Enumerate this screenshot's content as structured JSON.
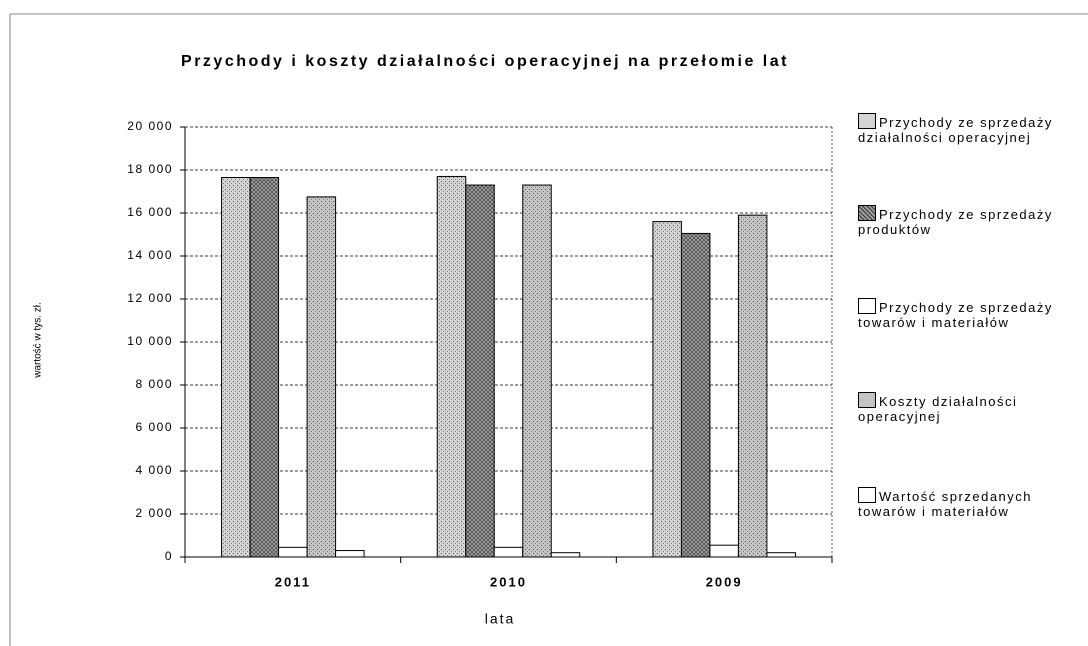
{
  "chart_data": {
    "type": "bar",
    "title": "Przychody i koszty działalności operacyjnej na przełomie lat",
    "x_label": "lata",
    "y_label": "wartość w tys. zł.",
    "categories": [
      "2011",
      "2010",
      "2009"
    ],
    "series": [
      {
        "name": "Przychody ze sprzedaży działalności operacyjnej",
        "color": "#d4d4d4",
        "values": [
          17650,
          17700,
          15600
        ]
      },
      {
        "name": "Przychody ze sprzedaży produktów",
        "color": "#a0a0a0",
        "values": [
          17650,
          17300,
          15050
        ]
      },
      {
        "name": "Przychody ze sprzedaży towarów i materiałów",
        "color": "#ffffff",
        "values": [
          450,
          450,
          550
        ]
      },
      {
        "name": "Koszty działalności operacyjnej",
        "color": "#c4c4c4",
        "values": [
          16750,
          17300,
          15900
        ]
      },
      {
        "name": "Wartość sprzedanych towarów i materiałów",
        "color": "#ffffff",
        "values": [
          300,
          200,
          200
        ]
      }
    ],
    "ylim": [
      0,
      20000
    ],
    "yticks": [
      0,
      {
        "value": 2000,
        "label": "2 000"
      },
      {
        "value": 4000,
        "label": "4 000"
      },
      {
        "value": 6000,
        "label": "6 000"
      },
      {
        "value": 8000,
        "label": "8 000"
      },
      {
        "value": 10000,
        "label": "10 000"
      },
      {
        "value": 12000,
        "label": "12 000"
      },
      {
        "value": 14000,
        "label": "14 000"
      },
      {
        "value": 16000,
        "label": "16 000"
      },
      {
        "value": 18000,
        "label": "18 000"
      },
      {
        "value": 20000,
        "label": "20 000"
      }
    ],
    "grid": true
  }
}
